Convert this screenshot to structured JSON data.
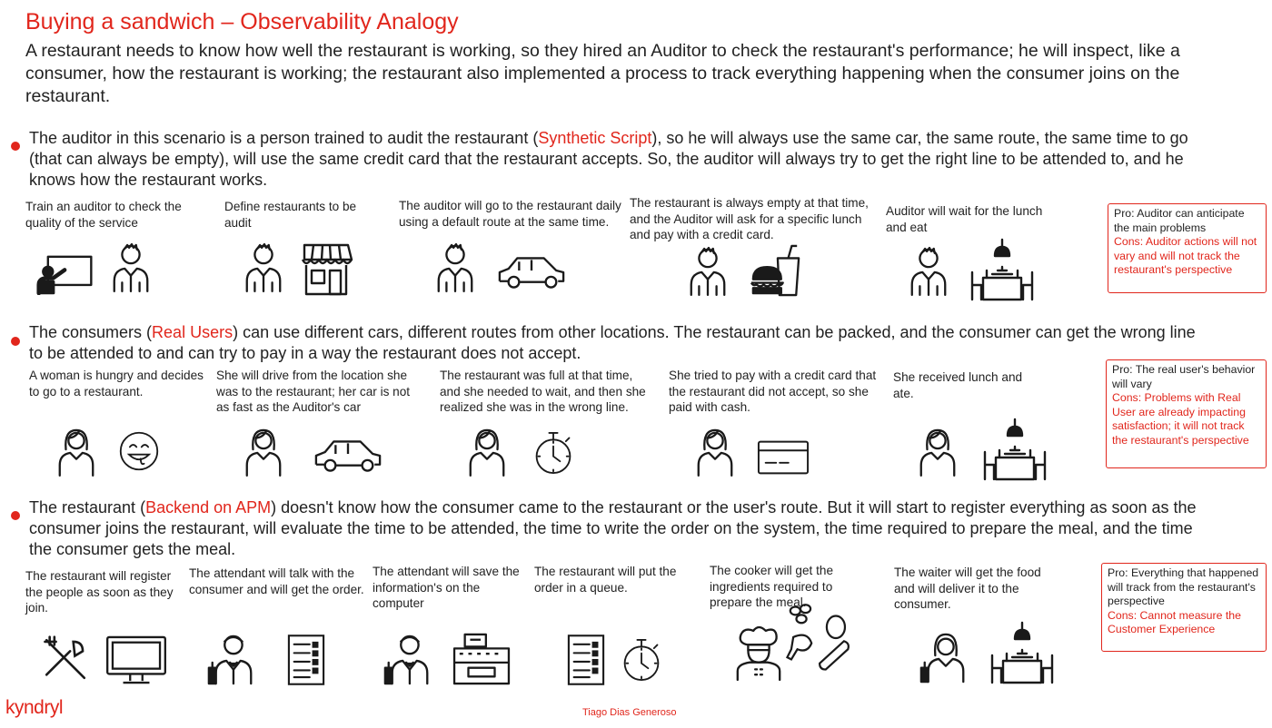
{
  "title": "Buying a sandwich – Observability Analogy",
  "intro": "A restaurant needs to know how well the restaurant is working, so they hired an Auditor to check the restaurant's performance; he will inspect, like a consumer, how the restaurant is working; the restaurant also implemented a process to track everything happening when the consumer joins on the restaurant.",
  "sections": [
    {
      "text_before": "The auditor in this scenario is a person trained to audit the restaurant (",
      "highlight": "Synthetic Script",
      "text_after": "), so he will always use the same car, the same route, the same time to go (that can always be empty), will use the same credit card that the restaurant accepts. So, the auditor will always try to get the right line to be attended to, and he knows how the restaurant works.",
      "steps": [
        "Train an auditor to check the quality of the service",
        "Define restaurants to be audit",
        "The auditor will go to the restaurant daily using a default route at the same time.",
        "The restaurant is always empty at that time, and the Auditor will ask for a specific lunch and pay with a credit card.",
        "Auditor will wait for the lunch and eat"
      ],
      "pro": "Pro: Auditor can anticipate the main problems",
      "cons": "Cons: Auditor actions will not vary and will not track the restaurant's perspective"
    },
    {
      "text_before": "The consumers (",
      "highlight": "Real Users",
      "text_after": ") can use different cars, different routes from other locations. The restaurant can be packed, and the consumer can get the wrong line to be attended to and can try to pay in a way the restaurant does not accept.",
      "steps": [
        "A woman is hungry and decides to go to a restaurant.",
        "She will drive from the location she was to the restaurant; her car is not as fast as the Auditor's car",
        "The restaurant was full at that time, and she needed to wait, and then she realized she was in the wrong line.",
        "She tried to pay with a credit card that the restaurant did not accept, so she paid with cash.",
        "She received lunch and ate."
      ],
      "pro": "Pro: The real user's behavior will vary",
      "cons": "Cons: Problems with Real User are already impacting satisfaction; it will not track the restaurant's perspective"
    },
    {
      "text_before": "The restaurant (",
      "highlight": "Backend on APM",
      "text_after": ") doesn't know how the consumer came to the restaurant or the user's route.  But it will start to register everything as soon as the consumer joins the restaurant, will evaluate the time to be attended, the time to write the order on the system, the time required to prepare the meal, and the time the consumer gets the meal.",
      "steps": [
        "The restaurant will register the people as soon as they join.",
        "The attendant will talk with the consumer and will get the order.",
        "The attendant will save the information's on the computer",
        "The restaurant will put the order in a queue.",
        "The cooker will get the ingredients required to prepare the meal.",
        "The waiter will get the food and will deliver it to the consumer."
      ],
      "pro": "Pro: Everything that happened will track from the restaurant's perspective",
      "cons": "Cons: Cannot measure the Customer Experience"
    }
  ],
  "logo": "kyndryl",
  "author": "Tiago Dias Generoso",
  "colors": {
    "accent": "#e1261c",
    "text": "#222222",
    "icon": "#1a1a1a"
  },
  "icons": [
    "teacher-board-icon",
    "man-icon",
    "man-icon",
    "store-icon",
    "man-icon",
    "car-icon",
    "man-icon",
    "burger-drink-icon",
    "man-icon",
    "dining-table-icon",
    "woman-icon",
    "smiley-icon",
    "woman-icon",
    "car-icon",
    "woman-icon",
    "stopwatch-icon",
    "woman-icon",
    "credit-card-icon",
    "woman-icon",
    "dining-table-icon",
    "cutlery-icon",
    "monitor-icon",
    "waiter-icon",
    "order-list-icon",
    "waiter-icon",
    "cash-register-icon",
    "order-list-icon",
    "stopwatch-icon",
    "chef-icon",
    "ingredients-icon",
    "waitress-icon",
    "dining-table-icon"
  ]
}
